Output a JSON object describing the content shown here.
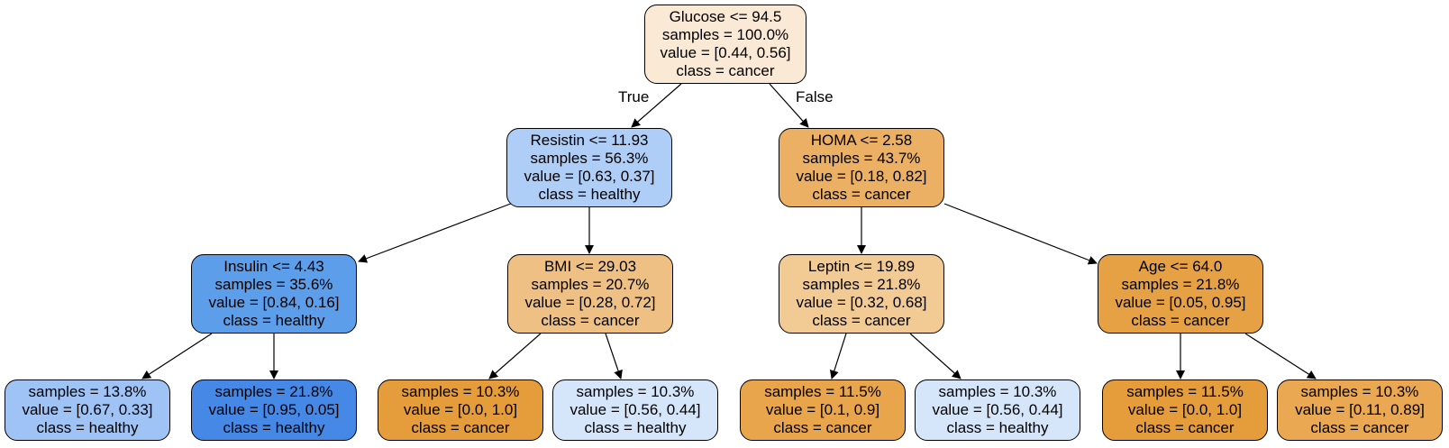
{
  "edge_labels": {
    "true_label": "True",
    "false_label": "False"
  },
  "nodes": [
    {
      "id": "n0",
      "lines": [
        "Glucose <= 94.5",
        "samples = 100.0%",
        "value = [0.44, 0.56]",
        "class = cancer"
      ],
      "fill": "#fae9d5"
    },
    {
      "id": "n1",
      "lines": [
        "Resistin <= 11.93",
        "samples = 56.3%",
        "value = [0.63, 0.37]",
        "class = healthy"
      ],
      "fill": "#aecdf7"
    },
    {
      "id": "n2",
      "lines": [
        "HOMA <= 2.58",
        "samples = 43.7%",
        "value = [0.18, 0.82]",
        "class = cancer"
      ],
      "fill": "#ebb063"
    },
    {
      "id": "n3",
      "lines": [
        "Insulin <= 4.43",
        "samples = 35.6%",
        "value = [0.84, 0.16]",
        "class = healthy"
      ],
      "fill": "#5d9eeb"
    },
    {
      "id": "n4",
      "lines": [
        "BMI <= 29.03",
        "samples = 20.7%",
        "value = [0.28, 0.72]",
        "class = cancer"
      ],
      "fill": "#efc084"
    },
    {
      "id": "n5",
      "lines": [
        "Leptin <= 19.89",
        "samples = 21.8%",
        "value = [0.32, 0.68]",
        "class = cancer"
      ],
      "fill": "#f2ca94"
    },
    {
      "id": "n6",
      "lines": [
        "Age <= 64.0",
        "samples = 21.8%",
        "value = [0.05, 0.95]",
        "class = cancer"
      ],
      "fill": "#e6a144"
    },
    {
      "id": "n7",
      "lines": [
        "samples = 13.8%",
        "value = [0.67, 0.33]",
        "class = healthy"
      ],
      "fill": "#9fc3f5"
    },
    {
      "id": "n8",
      "lines": [
        "samples = 21.8%",
        "value = [0.95, 0.05]",
        "class = healthy"
      ],
      "fill": "#4588e6"
    },
    {
      "id": "n9",
      "lines": [
        "samples = 10.3%",
        "value = [0.0, 1.0]",
        "class = cancer"
      ],
      "fill": "#e59d3c"
    },
    {
      "id": "n10",
      "lines": [
        "samples = 10.3%",
        "value = [0.56, 0.44]",
        "class = healthy"
      ],
      "fill": "#d6e6fa"
    },
    {
      "id": "n11",
      "lines": [
        "samples = 11.5%",
        "value = [0.1, 0.9]",
        "class = cancer"
      ],
      "fill": "#e8a54c"
    },
    {
      "id": "n12",
      "lines": [
        "samples = 10.3%",
        "value = [0.56, 0.44]",
        "class = healthy"
      ],
      "fill": "#d6e6fa"
    },
    {
      "id": "n13",
      "lines": [
        "samples = 11.5%",
        "value = [0.0, 1.0]",
        "class = cancer"
      ],
      "fill": "#e59d3c"
    },
    {
      "id": "n14",
      "lines": [
        "samples = 10.3%",
        "value = [0.11, 0.89]",
        "class = cancer"
      ],
      "fill": "#e9a851"
    }
  ],
  "edges": [
    [
      "n0",
      "n1"
    ],
    [
      "n0",
      "n2"
    ],
    [
      "n1",
      "n3"
    ],
    [
      "n1",
      "n4"
    ],
    [
      "n2",
      "n5"
    ],
    [
      "n2",
      "n6"
    ],
    [
      "n3",
      "n7"
    ],
    [
      "n3",
      "n8"
    ],
    [
      "n4",
      "n9"
    ],
    [
      "n4",
      "n10"
    ],
    [
      "n5",
      "n11"
    ],
    [
      "n5",
      "n12"
    ],
    [
      "n6",
      "n13"
    ],
    [
      "n6",
      "n14"
    ]
  ]
}
